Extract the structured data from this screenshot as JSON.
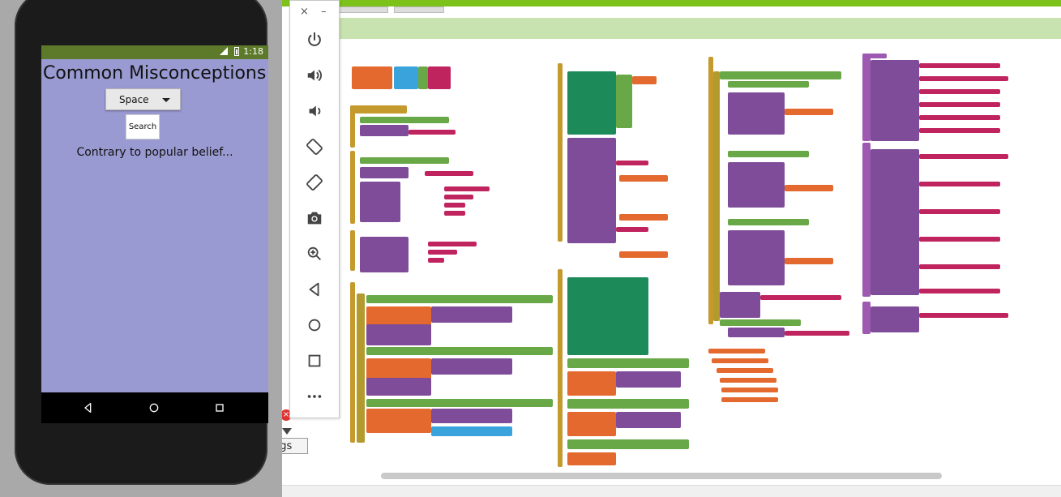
{
  "emulator": {
    "close_glyph": "×",
    "minimize_glyph": "–",
    "tools": [
      {
        "name": "power-icon"
      },
      {
        "name": "volume-up-icon"
      },
      {
        "name": "volume-down-icon"
      },
      {
        "name": "rotate-left-icon"
      },
      {
        "name": "rotate-right-icon"
      },
      {
        "name": "camera-icon"
      },
      {
        "name": "zoom-icon"
      },
      {
        "name": "back-icon"
      },
      {
        "name": "home-icon"
      },
      {
        "name": "overview-icon"
      },
      {
        "name": "more-icon"
      }
    ]
  },
  "phone": {
    "status_time": "1:18",
    "app_title": "Common Misconceptions",
    "spinner_value": "Space",
    "search_label": "Search",
    "result_text": "Contrary to popular belief..."
  },
  "background": {
    "fragment_button_text": "ngs",
    "fragment_close": "×"
  },
  "colors": {
    "accent_green": "#7cc21b",
    "app_background": "#9a9ad2",
    "status_bar": "#5d7a2b"
  }
}
